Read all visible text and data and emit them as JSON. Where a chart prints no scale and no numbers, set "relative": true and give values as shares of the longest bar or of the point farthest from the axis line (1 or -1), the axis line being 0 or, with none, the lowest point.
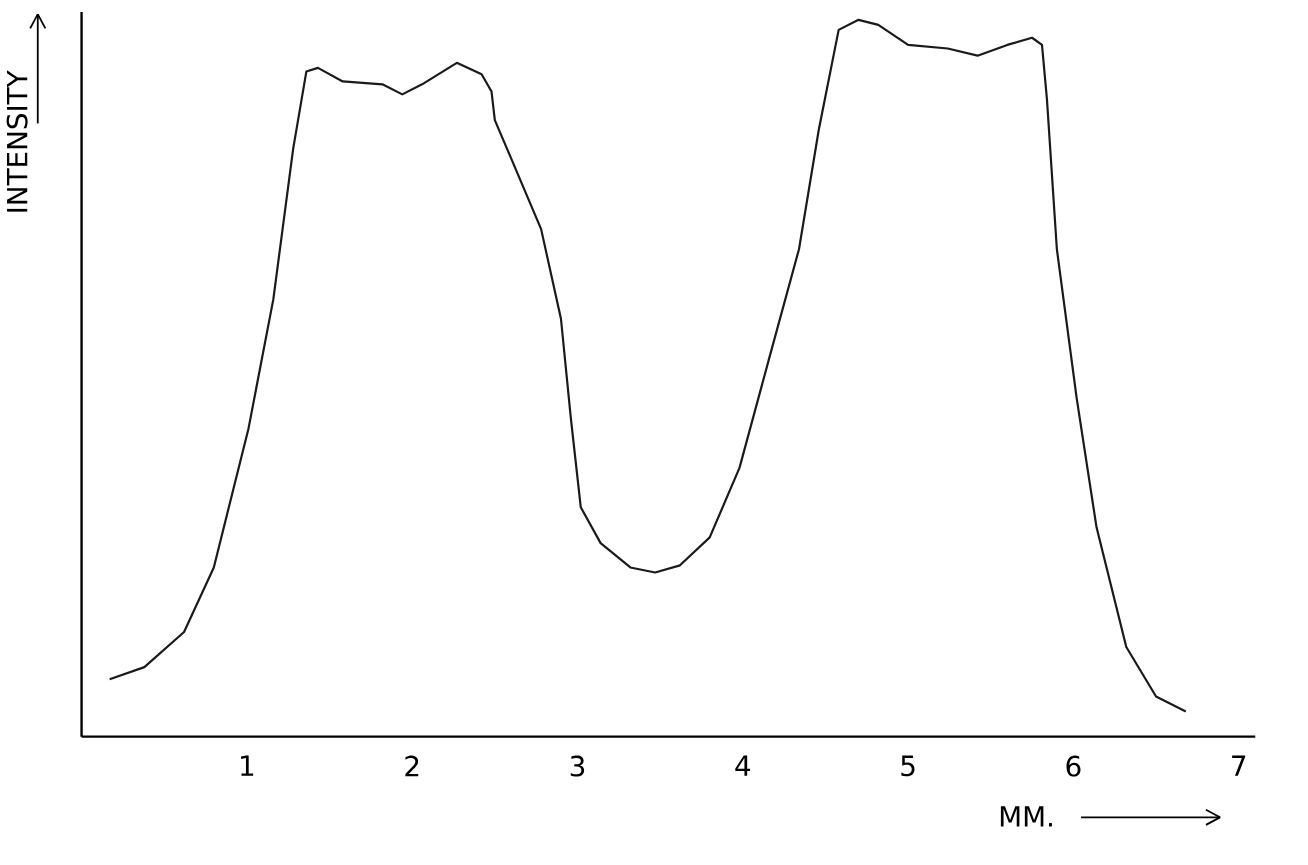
{
  "chart_data": {
    "type": "line",
    "xlabel": "MM.",
    "ylabel": "INTENSITY",
    "relative": true,
    "color": "#1a1a1a",
    "xlim": [
      0,
      7.1
    ],
    "xticks": [
      1,
      2,
      3,
      4,
      5,
      6,
      7
    ],
    "x": [
      0.17,
      0.38,
      0.62,
      0.8,
      1.01,
      1.16,
      1.28,
      1.36,
      1.43,
      1.58,
      1.82,
      1.94,
      2.06,
      2.27,
      2.42,
      2.48,
      2.5,
      2.6,
      2.78,
      2.9,
      2.96,
      3.02,
      3.14,
      3.32,
      3.47,
      3.62,
      3.8,
      3.98,
      4.16,
      4.34,
      4.46,
      4.58,
      4.7,
      4.82,
      5.0,
      5.24,
      5.42,
      5.6,
      5.75,
      5.81,
      5.84,
      5.9,
      6.02,
      6.14,
      6.32,
      6.5,
      6.68
    ],
    "values": [
      0.08,
      0.097,
      0.146,
      0.236,
      0.43,
      0.61,
      0.82,
      0.928,
      0.933,
      0.914,
      0.91,
      0.896,
      0.91,
      0.94,
      0.924,
      0.9,
      0.86,
      0.806,
      0.708,
      0.583,
      0.444,
      0.32,
      0.27,
      0.236,
      0.229,
      0.239,
      0.278,
      0.375,
      0.528,
      0.68,
      0.847,
      0.986,
      1.0,
      0.993,
      0.965,
      0.96,
      0.95,
      0.965,
      0.975,
      0.965,
      0.889,
      0.68,
      0.472,
      0.292,
      0.125,
      0.056,
      0.035
    ]
  }
}
